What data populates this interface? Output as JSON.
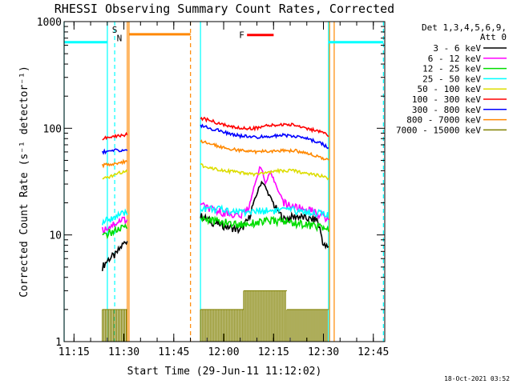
{
  "chart_data": {
    "type": "line",
    "title": "RHESSI Observing Summary Count Rates, Corrected",
    "xlabel": "Start Time (29-Jun-11 11:12:02)",
    "ylabel": "Corrected Count Rate (s⁻¹ detector⁻¹)",
    "yscale": "log",
    "ylim": [
      1,
      1000
    ],
    "xlim_minutes_after_11_12_02": [
      0,
      96.4
    ],
    "x_tick_labels": [
      "11:15",
      "11:30",
      "11:45",
      "12:00",
      "12:15",
      "12:30",
      "12:45"
    ],
    "y_tick_labels": [
      "1",
      "10",
      "100",
      "1000"
    ],
    "legend_title": [
      "Det 1,3,4,5,6,9,",
      "Att 0"
    ],
    "grid": false,
    "legend_position": "right, outside plot",
    "series": [
      {
        "name": "3 - 6 keV",
        "color": "#000000",
        "segments": [
          {
            "t": [
              11.5,
              13.5,
              15.5,
              17.5,
              19.0
            ],
            "y": [
              5,
              6,
              6.5,
              8,
              9
            ]
          },
          {
            "t": [
              41.0,
              45.0,
              49.0,
              53.0,
              55.5,
              57.5,
              59.5,
              61.5,
              63.5,
              66.0,
              70.0,
              74.0,
              76.0,
              78.0,
              79.5
            ],
            "y": [
              15,
              13,
              12,
              11,
              14,
              22,
              32,
              24,
              18,
              14,
              15,
              14,
              14,
              8,
              7.5
            ]
          }
        ]
      },
      {
        "name": "6 - 12 keV",
        "color": "#ff00ff",
        "segments": [
          {
            "t": [
              11.5,
              13.5,
              15.5,
              17.5,
              19.0
            ],
            "y": [
              11,
              12,
              13,
              14,
              14
            ]
          },
          {
            "t": [
              41.0,
              45.0,
              49.0,
              53.0,
              55.5,
              57.5,
              59.0,
              60.5,
              62.0,
              64.0,
              66.0,
              70.0,
              74.0,
              76.0,
              78.0,
              79.5
            ],
            "y": [
              19,
              17,
              16,
              15,
              18,
              30,
              45,
              30,
              38,
              28,
              20,
              18,
              17,
              16,
              15,
              14
            ]
          }
        ]
      },
      {
        "name": "12 - 25 keV",
        "color": "#00dd00",
        "segments": [
          {
            "t": [
              11.5,
              13.5,
              15.5,
              17.5,
              19.0
            ],
            "y": [
              9.5,
              10.5,
              11,
              11.5,
              12
            ]
          },
          {
            "t": [
              41.0,
              45.0,
              49.0,
              53.0,
              57.0,
              61.0,
              65.0,
              69.0,
              73.0,
              77.0,
              79.5
            ],
            "y": [
              14.5,
              13.5,
              13,
              12.5,
              13,
              13.5,
              13.5,
              13,
              12.5,
              12,
              11
            ]
          }
        ]
      },
      {
        "name": "25 - 50 keV",
        "color": "#00ffff",
        "segments": [
          {
            "t": [
              11.5,
              13.5,
              15.5,
              17.5,
              19.0
            ],
            "y": [
              13,
              14,
              15,
              15.5,
              16
            ]
          },
          {
            "t": [
              41.0,
              45.0,
              49.0,
              53.0,
              57.0,
              61.0,
              65.0,
              69.0,
              73.0,
              77.0,
              79.5
            ],
            "y": [
              18,
              17.5,
              17,
              16.5,
              16.5,
              17,
              17,
              17,
              16.5,
              16,
              15
            ]
          },
          {
            "t": [
              0.0,
              13.0
            ],
            "y": [
              640,
              640
            ]
          },
          {
            "t": [
              79.5,
              96.0
            ],
            "y": [
              640,
              640
            ]
          }
        ]
      },
      {
        "name": "50 - 100 keV",
        "color": "#dddd00",
        "segments": [
          {
            "t": [
              11.5,
              13.5,
              15.5,
              17.5,
              19.0
            ],
            "y": [
              33,
              35,
              37,
              39,
              40
            ]
          },
          {
            "t": [
              41.0,
              45.0,
              49.0,
              53.0,
              57.0,
              61.0,
              65.0,
              69.0,
              73.0,
              77.0,
              79.5
            ],
            "y": [
              45,
              42,
              40,
              38,
              37,
              38,
              40,
              40,
              38,
              36,
              34
            ]
          }
        ]
      },
      {
        "name": "100 - 300 keV",
        "color": "#ff0000",
        "segments": [
          {
            "t": [
              11.5,
              13.5,
              15.5,
              17.5,
              19.0
            ],
            "y": [
              80,
              82,
              84,
              86,
              88
            ]
          },
          {
            "t": [
              41.0,
              45.0,
              49.0,
              53.0,
              57.0,
              61.0,
              65.0,
              69.0,
              73.0,
              77.0,
              79.5
            ],
            "y": [
              125,
              115,
              105,
              100,
              100,
              105,
              108,
              108,
              100,
              92,
              85
            ]
          },
          {
            "t": [
              55.0,
              63.0
            ],
            "y": [
              750,
              750
            ]
          }
        ]
      },
      {
        "name": "300 - 800 keV",
        "color": "#0000ff",
        "segments": [
          {
            "t": [
              11.5,
              13.5,
              15.5,
              17.5,
              19.0
            ],
            "y": [
              60,
              61,
              62,
              62,
              63
            ]
          },
          {
            "t": [
              41.0,
              45.0,
              49.0,
              53.0,
              57.0,
              61.0,
              65.0,
              69.0,
              73.0,
              77.0,
              79.5
            ],
            "y": [
              105,
              98,
              90,
              85,
              82,
              84,
              86,
              85,
              80,
              73,
              66
            ]
          }
        ]
      },
      {
        "name": "800 - 7000 keV",
        "color": "#ff8800",
        "segments": [
          {
            "t": [
              11.5,
              13.5,
              15.5,
              17.5,
              19.0
            ],
            "y": [
              45,
              46,
              47,
              48,
              49
            ]
          },
          {
            "t": [
              41.0,
              45.0,
              49.0,
              53.0,
              57.0,
              61.0,
              65.0,
              69.0,
              73.0,
              77.0,
              79.5
            ],
            "y": [
              75,
              70,
              65,
              62,
              60,
              61,
              62,
              62,
              58,
              54,
              50
            ]
          },
          {
            "t": [
              19.5,
              38.0
            ],
            "y": [
              760,
              760
            ]
          }
        ]
      },
      {
        "name": "7000 - 15000 keV",
        "color": "#808000",
        "segments": [
          {
            "t": [
              11.5,
              19.0
            ],
            "y": [
              2,
              2
            ]
          },
          {
            "t": [
              41.0,
              54.0
            ],
            "y": [
              2,
              2
            ]
          },
          {
            "t": [
              54.0,
              67.0
            ],
            "y": [
              3,
              3
            ]
          },
          {
            "t": [
              67.0,
              79.5
            ],
            "y": [
              2,
              2
            ]
          }
        ]
      }
    ],
    "annotations": [
      {
        "text": "S",
        "color": "#ff8800",
        "t": 15.2,
        "y": 840
      },
      {
        "text": "N",
        "color": "#00ffff",
        "t": 16.6,
        "y": 700
      },
      {
        "text": "F",
        "color": "#ff0000",
        "t": 53.4,
        "y": 750
      }
    ],
    "vertical_markers": [
      {
        "t": 0.0,
        "color": "#00ffff",
        "style": "solid"
      },
      {
        "t": 13.0,
        "color": "#00ffff",
        "style": "solid"
      },
      {
        "t": 15.2,
        "color": "#00ffff",
        "style": "dashed"
      },
      {
        "t": 19.0,
        "color": "#ff8800",
        "style": "solid"
      },
      {
        "t": 19.5,
        "color": "#ff8800",
        "style": "solid"
      },
      {
        "t": 38.0,
        "color": "#ff8800",
        "style": "dashed"
      },
      {
        "t": 41.0,
        "color": "#00ffff",
        "style": "solid"
      },
      {
        "t": 79.5,
        "color": "#00ffff",
        "style": "solid"
      },
      {
        "t": 79.8,
        "color": "#ff8800",
        "style": "solid"
      },
      {
        "t": 81.2,
        "color": "#ff8800",
        "style": "solid"
      },
      {
        "t": 96.0,
        "color": "#00ffff",
        "style": "dashed"
      }
    ]
  },
  "footer": {
    "timestamp": "18-Oct-2021 03:52"
  }
}
